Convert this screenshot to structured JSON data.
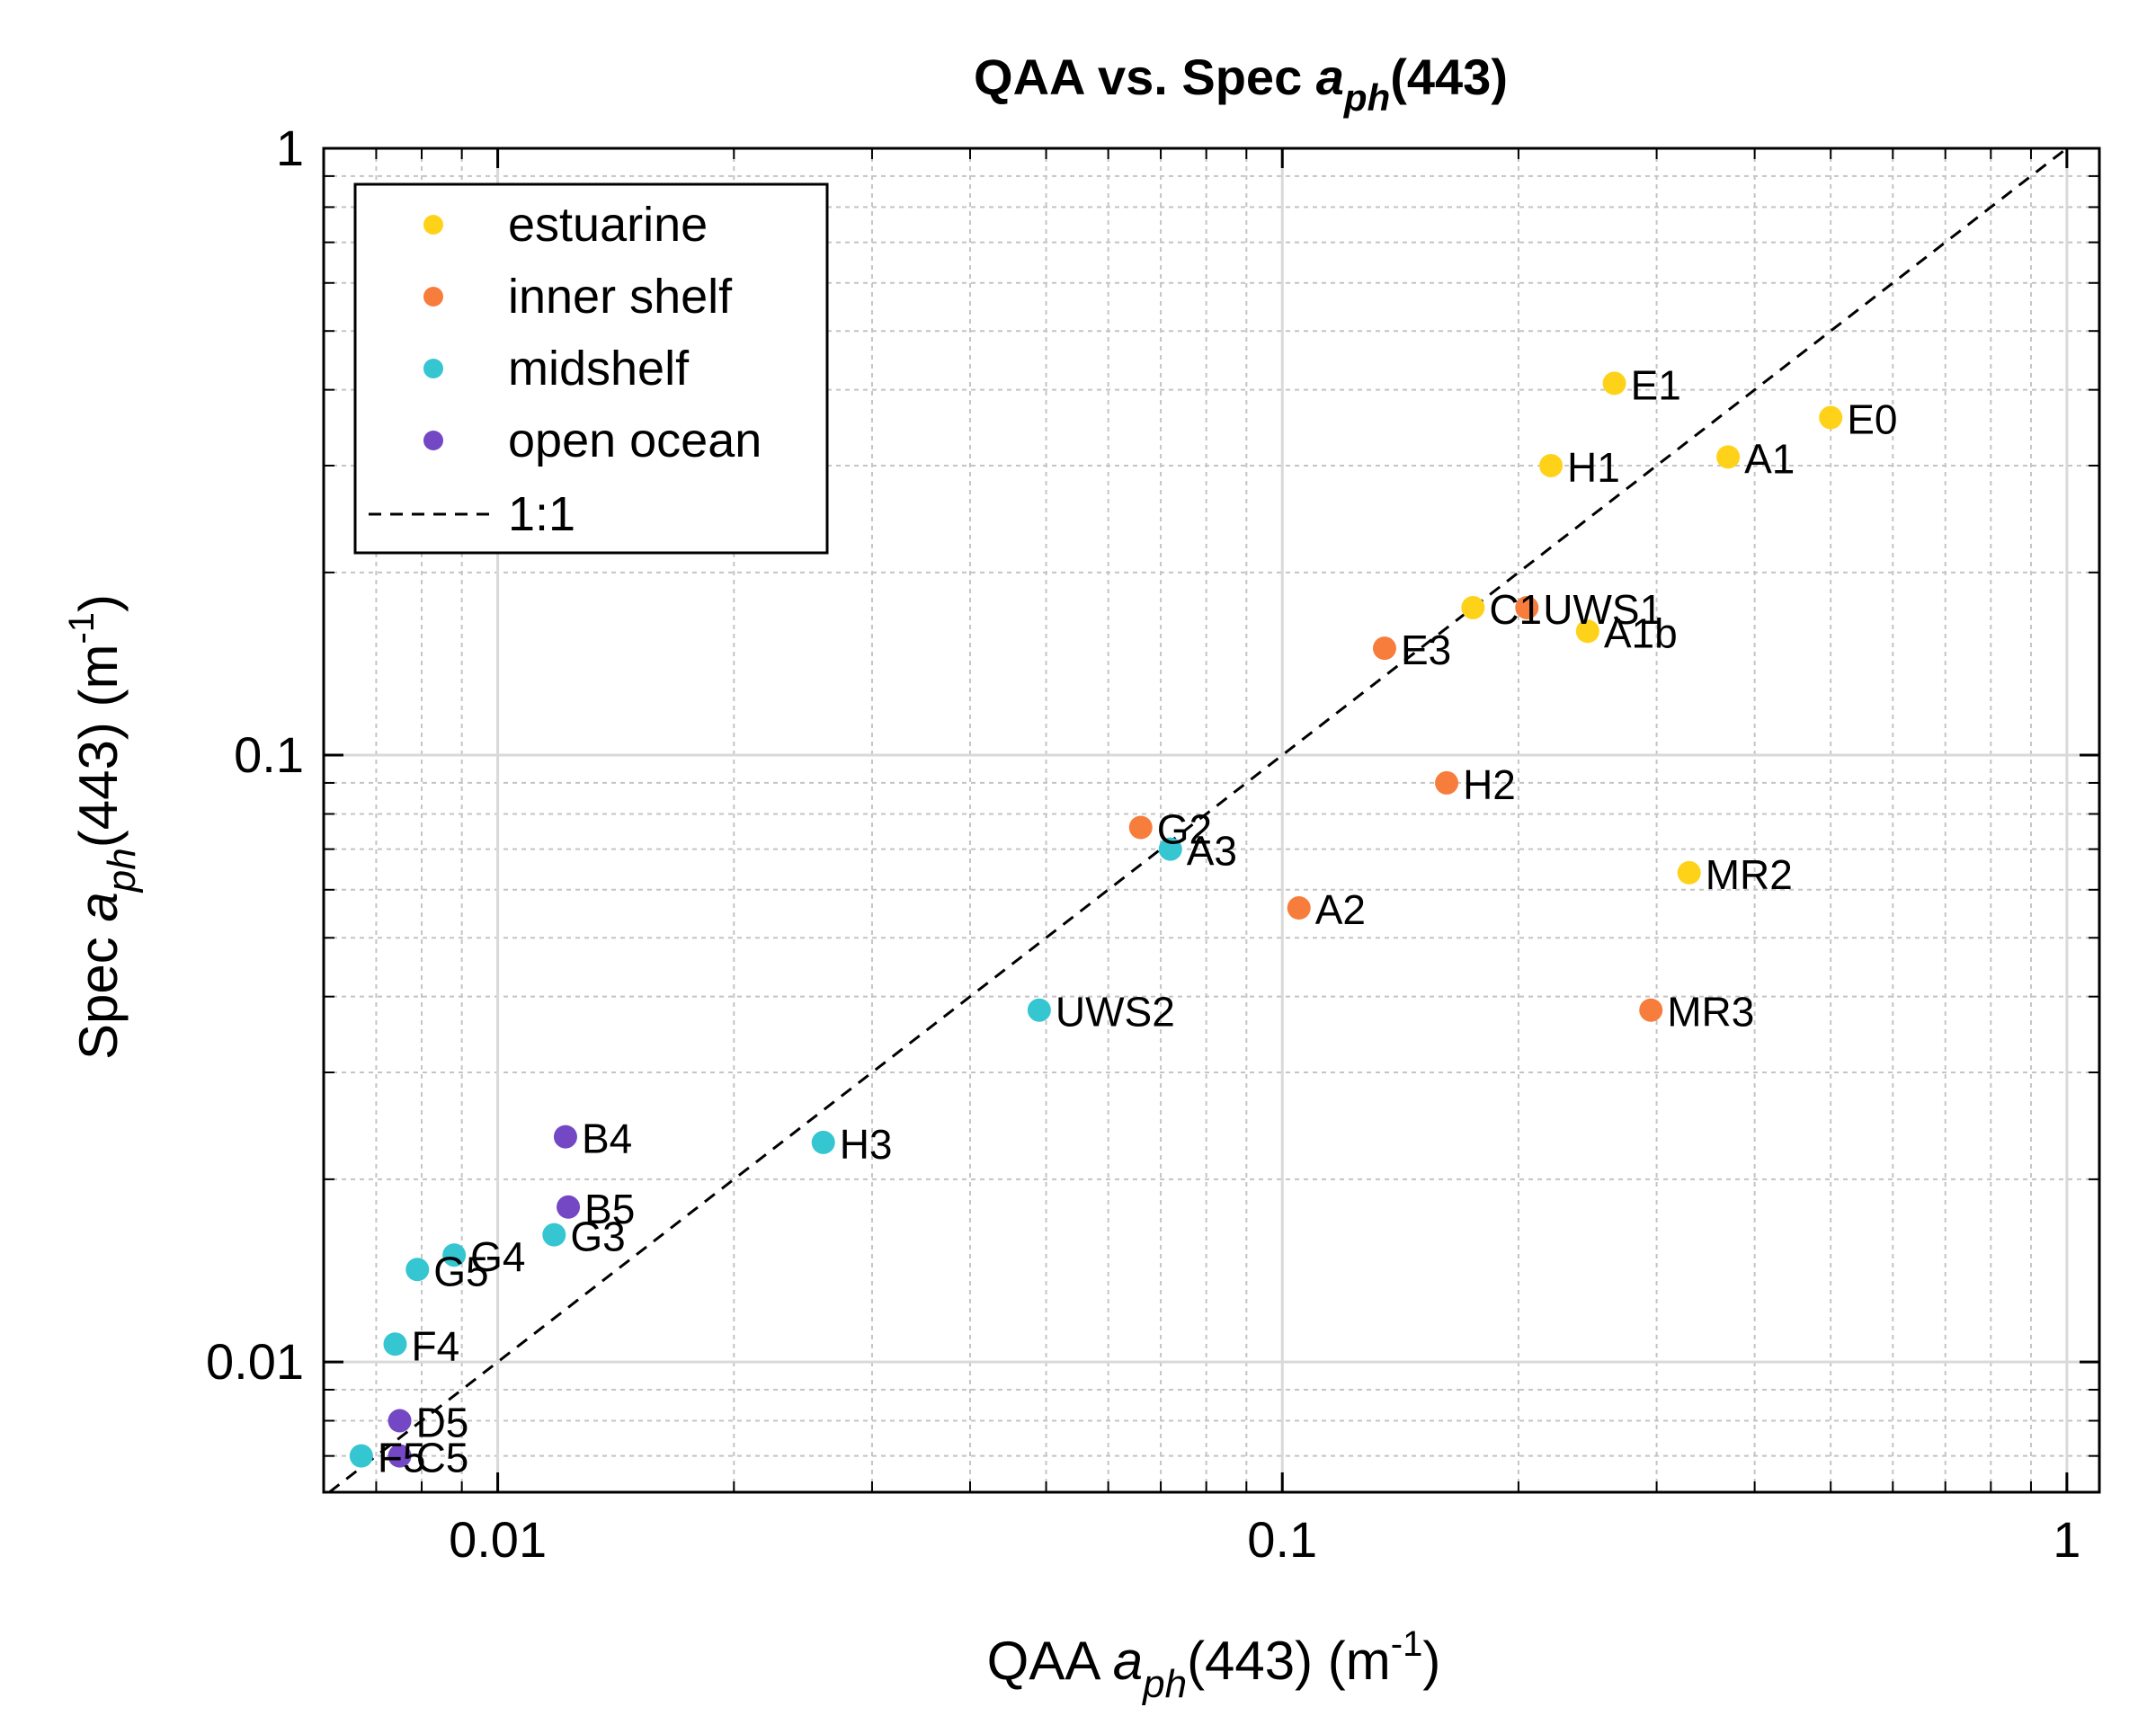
{
  "chart_data": {
    "type": "scatter",
    "title": {
      "main": "QAA vs. Spec ",
      "var": "a",
      "sub": "ph",
      "tail": "(443)"
    },
    "xlabel": {
      "pre": "QAA ",
      "var": "a",
      "sub": "ph",
      "mid": "(443)  (m",
      "sup": "-1",
      "post": ")"
    },
    "ylabel": {
      "pre": "Spec ",
      "var": "a",
      "sub": "ph",
      "mid": "(443)  (m",
      "sup": "-1",
      "post": ")"
    },
    "xscale": "log",
    "yscale": "log",
    "xlim": [
      0.006,
      1.1
    ],
    "ylim": [
      0.0061,
      1.0
    ],
    "xticks": [
      {
        "v": 0.01,
        "label": "0.01"
      },
      {
        "v": 0.1,
        "label": "0.1"
      },
      {
        "v": 1,
        "label": "1"
      }
    ],
    "yticks": [
      {
        "v": 0.01,
        "label": "0.01"
      },
      {
        "v": 0.1,
        "label": "0.1"
      },
      {
        "v": 1,
        "label": "1"
      }
    ],
    "grid": true,
    "minor_grid": true,
    "legend_position": "top-left",
    "reference_line": {
      "label": "1:1",
      "color": "#000000",
      "style": "dashed"
    },
    "series": [
      {
        "name": "estuarine",
        "color": "#FFD21A",
        "points": [
          {
            "x": 0.265,
            "y": 0.41,
            "label": "E1"
          },
          {
            "x": 0.5,
            "y": 0.36,
            "label": "E0"
          },
          {
            "x": 0.37,
            "y": 0.31,
            "label": "A1"
          },
          {
            "x": 0.22,
            "y": 0.3,
            "label": "H1"
          },
          {
            "x": 0.175,
            "y": 0.175,
            "label": "C1"
          },
          {
            "x": 0.245,
            "y": 0.16,
            "label": "A1b"
          },
          {
            "x": 0.33,
            "y": 0.064,
            "label": "MR2"
          }
        ]
      },
      {
        "name": "inner shelf",
        "color": "#F77D3C",
        "points": [
          {
            "x": 0.205,
            "y": 0.175,
            "label": "UWS1"
          },
          {
            "x": 0.135,
            "y": 0.15,
            "label": "E3"
          },
          {
            "x": 0.162,
            "y": 0.09,
            "label": "H2"
          },
          {
            "x": 0.066,
            "y": 0.076,
            "label": "G2"
          },
          {
            "x": 0.105,
            "y": 0.056,
            "label": "A2"
          },
          {
            "x": 0.295,
            "y": 0.038,
            "label": "MR3"
          }
        ]
      },
      {
        "name": "midshelf",
        "color": "#35C6D1",
        "points": [
          {
            "x": 0.072,
            "y": 0.07,
            "label": "A3"
          },
          {
            "x": 0.049,
            "y": 0.038,
            "label": "UWS2"
          },
          {
            "x": 0.026,
            "y": 0.023,
            "label": "H3"
          },
          {
            "x": 0.0118,
            "y": 0.0162,
            "label": "G3"
          },
          {
            "x": 0.0088,
            "y": 0.015,
            "label": "G4"
          },
          {
            "x": 0.0079,
            "y": 0.0142,
            "label": "G5"
          },
          {
            "x": 0.0074,
            "y": 0.0107,
            "label": "F4"
          },
          {
            "x": 0.0067,
            "y": 0.007,
            "label": "F5"
          }
        ]
      },
      {
        "name": "open ocean",
        "color": "#7447C4",
        "points": [
          {
            "x": 0.0122,
            "y": 0.0235,
            "label": "B4"
          },
          {
            "x": 0.0123,
            "y": 0.018,
            "label": "B5"
          },
          {
            "x": 0.0075,
            "y": 0.008,
            "label": "D5"
          },
          {
            "x": 0.0075,
            "y": 0.007,
            "label": "C5"
          }
        ]
      }
    ]
  }
}
